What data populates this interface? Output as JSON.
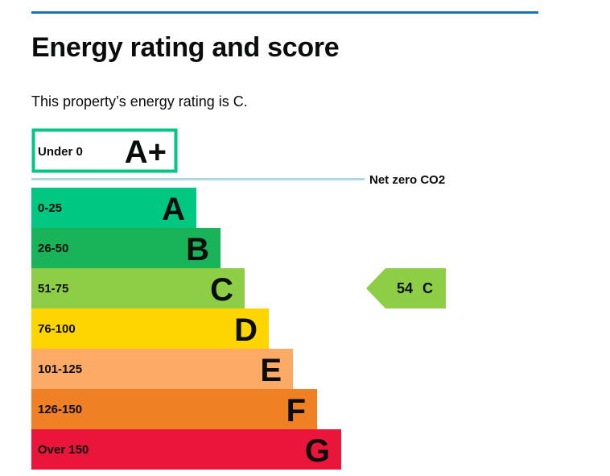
{
  "page": {
    "heading": "Energy rating and score",
    "lead": "This property’s energy rating is C."
  },
  "chart_data": {
    "type": "bar",
    "bands": [
      {
        "range": "Under 0",
        "letter": "A+",
        "color": "#00c781",
        "outline": true
      },
      {
        "range": "0-25",
        "letter": "A",
        "color": "#00c781"
      },
      {
        "range": "26-50",
        "letter": "B",
        "color": "#19b459"
      },
      {
        "range": "51-75",
        "letter": "C",
        "color": "#8dce46"
      },
      {
        "range": "76-100",
        "letter": "D",
        "color": "#ffd500"
      },
      {
        "range": "101-125",
        "letter": "E",
        "color": "#fcaa65"
      },
      {
        "range": "126-150",
        "letter": "F",
        "color": "#ef8023"
      },
      {
        "range": "Over 150",
        "letter": "G",
        "color": "#e9153b"
      }
    ],
    "net_zero": {
      "label": "Net zero CO2",
      "line_color": "#add8e6"
    },
    "current": {
      "score": 54,
      "letter": "C",
      "color": "#8dce46"
    }
  }
}
